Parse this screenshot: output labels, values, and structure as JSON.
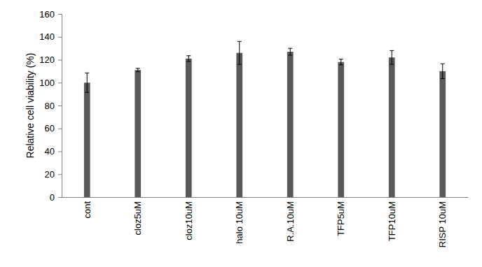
{
  "chart_data": {
    "type": "bar",
    "y_label": "Relative cell viability (%)",
    "categories": [
      "cont",
      "cloz5uM",
      "cloz10uM",
      "halo 10uM",
      "R.A.10uM",
      "TFP5uM",
      "TFP10uM",
      "RISP 10uM"
    ],
    "values": [
      100,
      111,
      121,
      126,
      127,
      118,
      122,
      110
    ],
    "errors": [
      8.5,
      1.5,
      2.5,
      10,
      3,
      2.5,
      6,
      6.5
    ],
    "color": "#595959",
    "ylim": [
      0,
      160
    ],
    "yticks": [
      0,
      20,
      40,
      60,
      80,
      100,
      120,
      140,
      160
    ],
    "grid": false
  }
}
